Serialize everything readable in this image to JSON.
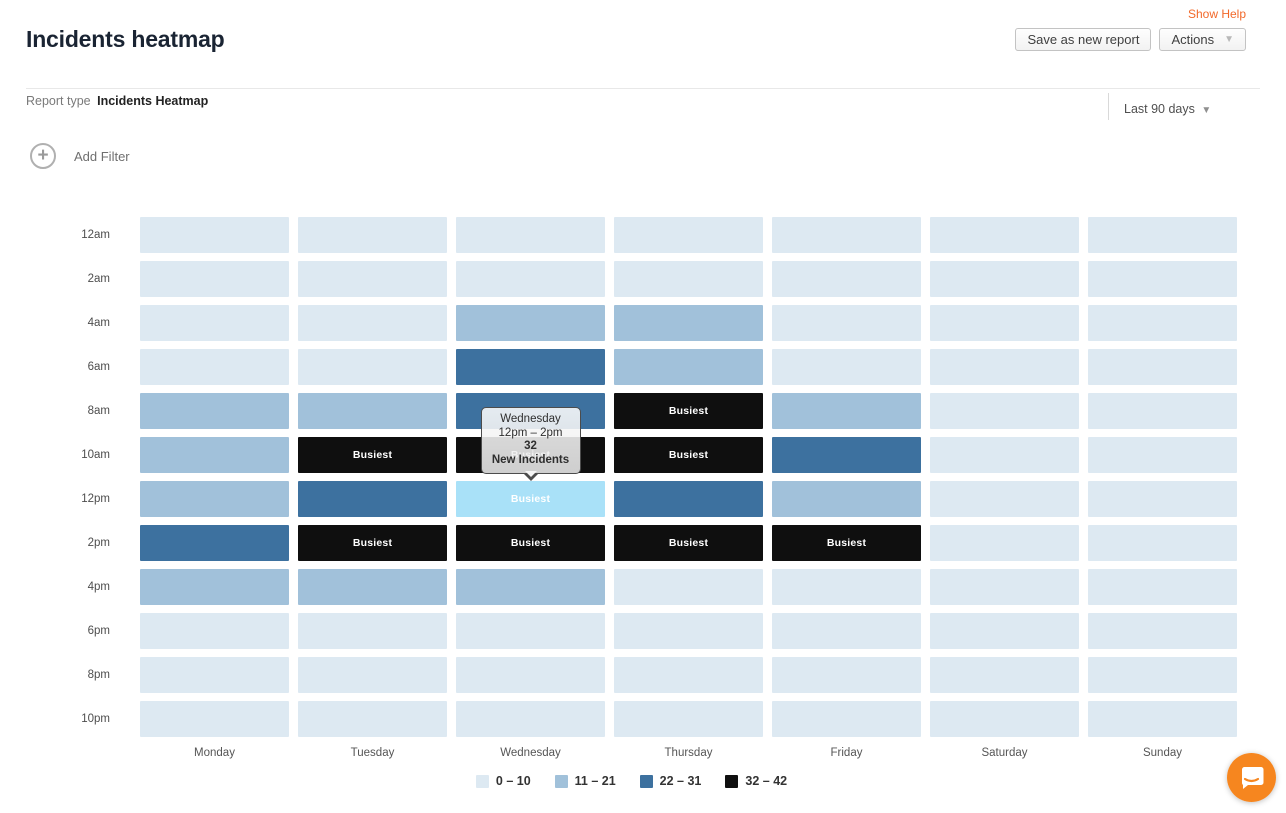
{
  "header": {
    "show_help": "Show Help",
    "title": "Incidents heatmap",
    "save_button": "Save as new report",
    "actions_button": "Actions",
    "accent_orange": "#f2692a"
  },
  "report_bar": {
    "label": "Report type",
    "value": "Incidents Heatmap",
    "date_range": "Last 90 days"
  },
  "filters": {
    "add_filter_label": "Add Filter"
  },
  "chart_data": {
    "type": "heatmap",
    "columns": [
      "Monday",
      "Tuesday",
      "Wednesday",
      "Thursday",
      "Friday",
      "Saturday",
      "Sunday"
    ],
    "rows": [
      "12am",
      "2am",
      "4am",
      "6am",
      "8am",
      "10am",
      "12pm",
      "2pm",
      "4pm",
      "6pm",
      "8pm",
      "10pm"
    ],
    "buckets": [
      {
        "label": "0 – 10",
        "color": "#dde9f2"
      },
      {
        "label": "11 – 21",
        "color": "#a1c1da"
      },
      {
        "label": "22 – 31",
        "color": "#3d719f"
      },
      {
        "label": "32 – 42",
        "color": "#0f0f0f"
      }
    ],
    "busiest_label": "Busiest",
    "cells": [
      [
        0,
        0,
        0,
        0,
        0,
        0,
        0
      ],
      [
        0,
        0,
        0,
        0,
        0,
        0,
        0
      ],
      [
        0,
        0,
        1,
        1,
        0,
        0,
        0
      ],
      [
        0,
        0,
        2,
        1,
        0,
        0,
        0
      ],
      [
        1,
        1,
        2,
        3,
        1,
        0,
        0
      ],
      [
        1,
        3,
        3,
        3,
        2,
        0,
        0
      ],
      [
        1,
        2,
        3,
        2,
        1,
        0,
        0
      ],
      [
        2,
        3,
        3,
        3,
        3,
        0,
        0
      ],
      [
        1,
        1,
        1,
        0,
        0,
        0,
        0
      ],
      [
        0,
        0,
        0,
        0,
        0,
        0,
        0
      ],
      [
        0,
        0,
        0,
        0,
        0,
        0,
        0
      ],
      [
        0,
        0,
        0,
        0,
        0,
        0,
        0
      ]
    ],
    "selected_cell": {
      "row_index": 6,
      "col_index": 2,
      "row": "12pm",
      "col": "Wednesday",
      "value": 32,
      "highlight_color": "#a9e1f8"
    },
    "tooltip": {
      "day": "Wednesday",
      "time_range": "12pm – 2pm",
      "value": "32",
      "label": "New Incidents"
    },
    "legend_position": "bottom-center"
  },
  "chat": {
    "icon": "chat-bubble-icon",
    "color": "#f6861f"
  }
}
